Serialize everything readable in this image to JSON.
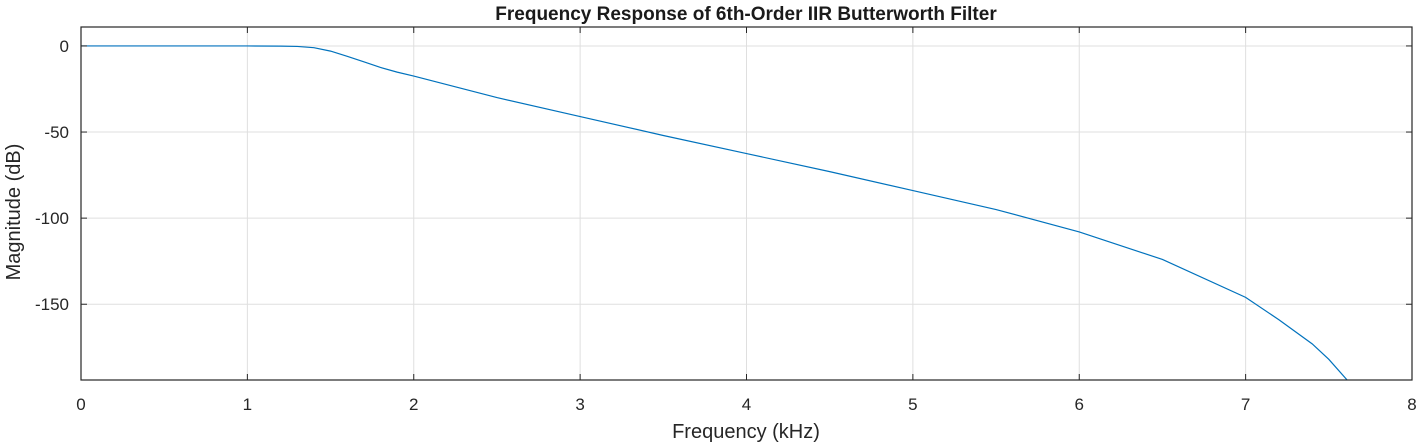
{
  "chart_data": {
    "type": "line",
    "title": "Frequency Response of 6th-Order IIR Butterworth Filter",
    "xlabel": "Frequency (kHz)",
    "ylabel": "Magnitude (dB)",
    "xlim": [
      0,
      8
    ],
    "ylim": [
      -194,
      11
    ],
    "xticks": [
      0,
      1,
      2,
      3,
      4,
      5,
      6,
      7,
      8
    ],
    "xtick_labels": [
      "0",
      "1",
      "2",
      "3",
      "4",
      "5",
      "6",
      "7",
      "8"
    ],
    "yticks": [
      0,
      -50,
      -100,
      -150
    ],
    "ytick_labels": [
      "0",
      "-50",
      "-100",
      "-150"
    ],
    "grid": true,
    "series": [
      {
        "name": "Magnitude",
        "color": "#0072BD",
        "x": [
          0,
          0.5,
          1.0,
          1.2,
          1.3,
          1.4,
          1.5,
          1.6,
          1.7,
          1.8,
          1.9,
          2.0,
          2.5,
          3.0,
          3.5,
          4.0,
          4.5,
          5.0,
          5.5,
          6.0,
          6.5,
          7.0,
          7.2,
          7.4,
          7.5,
          7.61
        ],
        "y": [
          0,
          0,
          0,
          -0.1,
          -0.3,
          -1.0,
          -3.0,
          -6.0,
          -9.2,
          -12.5,
          -15.2,
          -17.5,
          -30,
          -41,
          -52,
          -62.5,
          -73,
          -84,
          -95,
          -108,
          -124,
          -146,
          -159,
          -173,
          -182,
          -194
        ]
      }
    ]
  }
}
